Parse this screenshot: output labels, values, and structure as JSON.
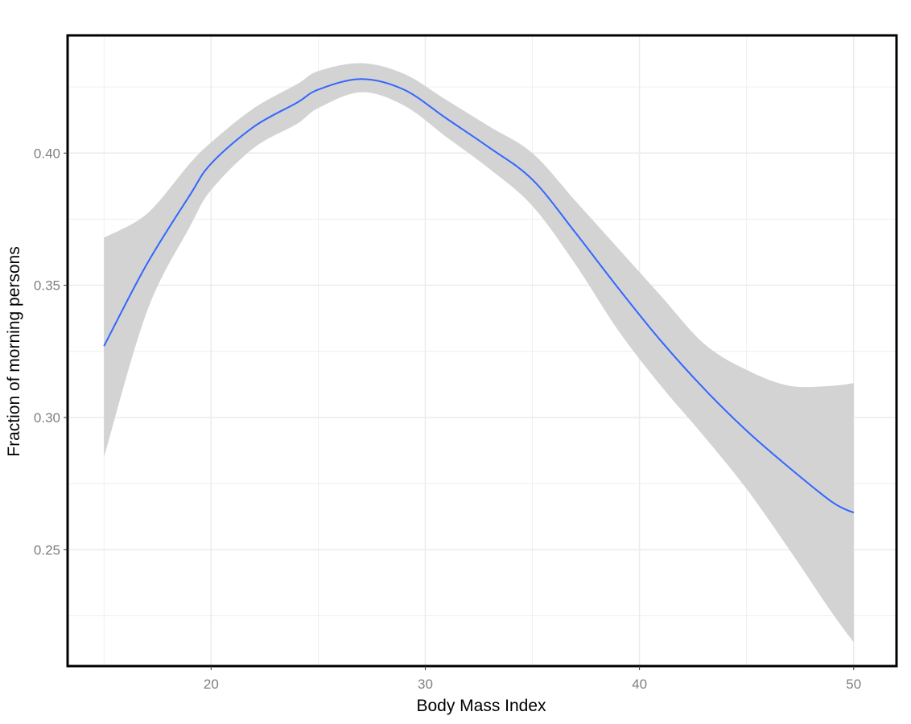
{
  "chart_data": {
    "type": "line",
    "xlabel": "Body Mass Index",
    "ylabel": "Fraction of morning persons",
    "xlim": [
      13.3,
      52.0
    ],
    "ylim": [
      0.206,
      0.4445
    ],
    "x_ticks": [
      20,
      30,
      40,
      50
    ],
    "y_ticks": [
      0.25,
      0.3,
      0.35,
      0.4
    ],
    "x_tick_labels": [
      "20",
      "30",
      "40",
      "50"
    ],
    "y_tick_labels": [
      "0.25",
      "0.30",
      "0.35",
      "0.40"
    ],
    "grid": true,
    "legend": "none",
    "colors": {
      "line": "#3366ff",
      "ribbon": "#d3d3d3",
      "grid": "#ebebeb",
      "tick_text": "#7f7f7f",
      "frame": "#000000"
    },
    "series": [
      {
        "x": [
          15,
          17,
          19,
          20,
          22,
          24,
          25,
          27,
          29,
          31,
          33,
          35,
          37,
          39,
          41,
          43,
          45,
          47,
          49,
          50
        ],
        "y": [
          0.327,
          0.358,
          0.384,
          0.396,
          0.41,
          0.419,
          0.424,
          0.428,
          0.424,
          0.413,
          0.402,
          0.39,
          0.37,
          0.349,
          0.329,
          0.311,
          0.295,
          0.281,
          0.268,
          0.264
        ],
        "lower": [
          0.285,
          0.34,
          0.372,
          0.386,
          0.402,
          0.411,
          0.417,
          0.423,
          0.418,
          0.406,
          0.394,
          0.38,
          0.358,
          0.333,
          0.312,
          0.293,
          0.273,
          0.25,
          0.226,
          0.215
        ],
        "upper": [
          0.368,
          0.377,
          0.396,
          0.404,
          0.417,
          0.426,
          0.431,
          0.434,
          0.43,
          0.42,
          0.41,
          0.4,
          0.382,
          0.364,
          0.346,
          0.328,
          0.318,
          0.312,
          0.312,
          0.313
        ]
      }
    ]
  }
}
